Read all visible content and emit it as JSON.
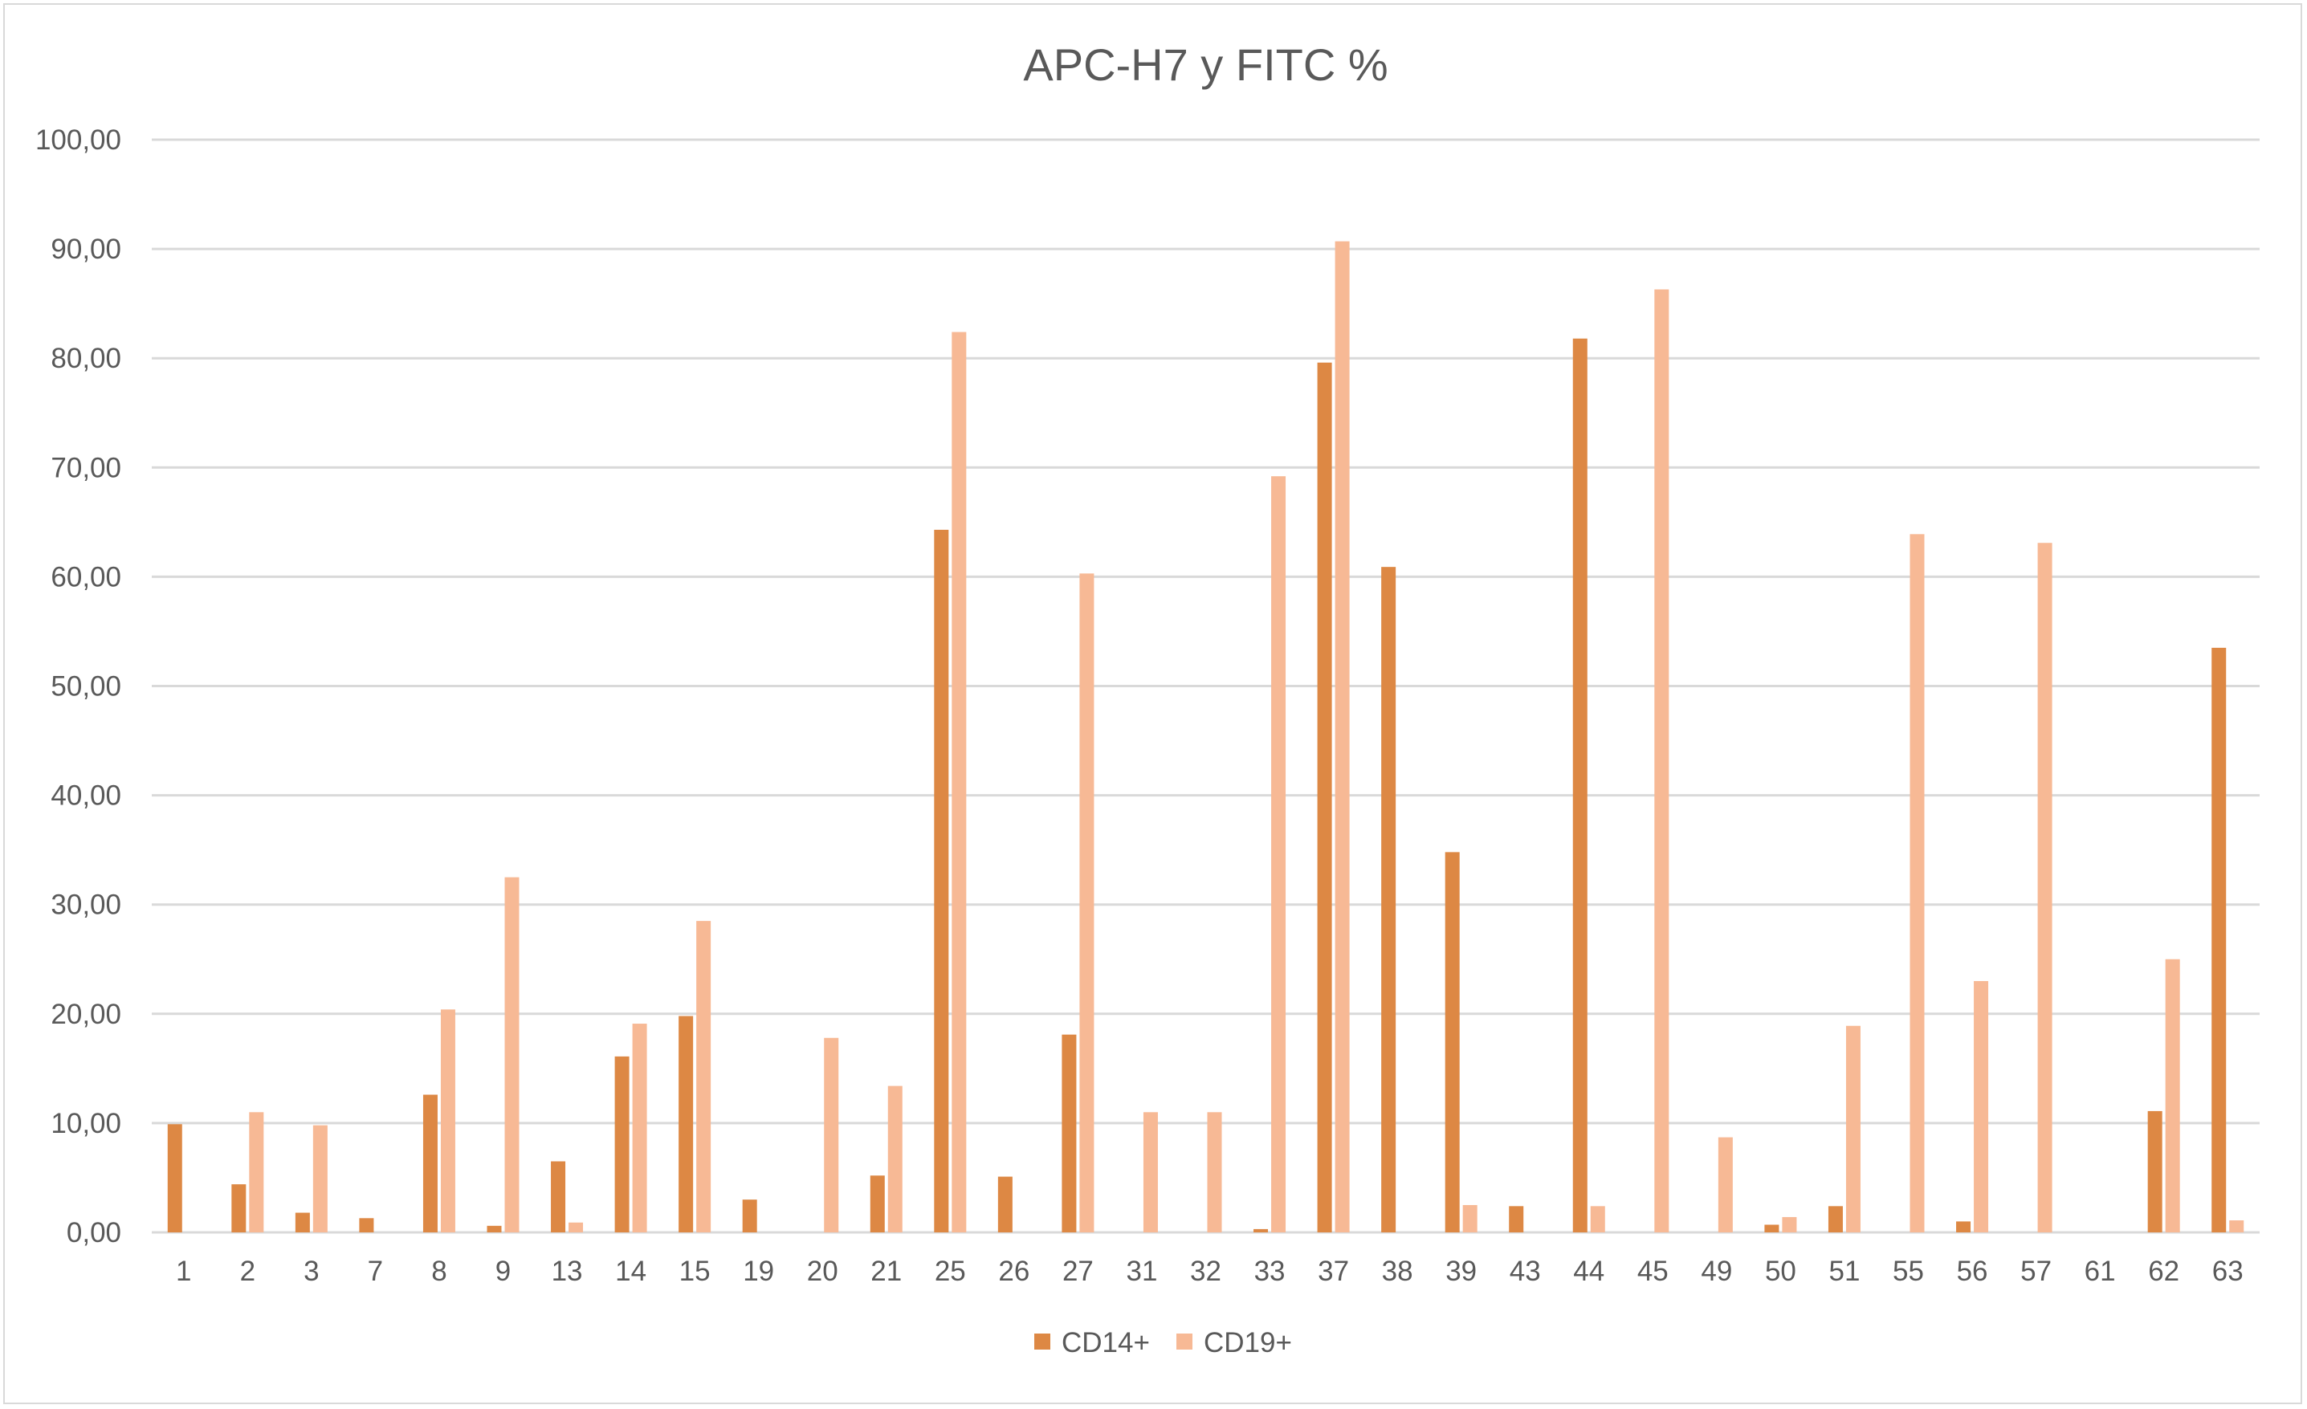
{
  "chart_data": {
    "type": "bar",
    "title": "APC-H7 y FITC %",
    "xlabel": "",
    "ylabel": "",
    "ylim": [
      0,
      100
    ],
    "y_ticks": [
      "0,00",
      "10,00",
      "20,00",
      "30,00",
      "40,00",
      "50,00",
      "60,00",
      "70,00",
      "80,00",
      "90,00",
      "100,00"
    ],
    "grid": true,
    "legend_position": "bottom",
    "categories": [
      "1",
      "2",
      "3",
      "7",
      "8",
      "9",
      "13",
      "14",
      "15",
      "19",
      "20",
      "21",
      "25",
      "26",
      "27",
      "31",
      "32",
      "33",
      "37",
      "38",
      "39",
      "43",
      "44",
      "45",
      "49",
      "50",
      "51",
      "55",
      "56",
      "57",
      "61",
      "62",
      "63"
    ],
    "series": [
      {
        "name": "CD14+",
        "color": "#dd8844",
        "values": [
          9.9,
          4.4,
          1.8,
          1.3,
          12.6,
          0.6,
          6.5,
          16.1,
          19.8,
          3.0,
          0.0,
          5.2,
          64.3,
          5.1,
          18.1,
          0.0,
          0.0,
          0.3,
          79.6,
          60.9,
          34.8,
          2.4,
          81.8,
          0.0,
          0.0,
          0.7,
          2.4,
          0.0,
          1.0,
          0.0,
          0.0,
          11.1,
          53.5
        ]
      },
      {
        "name": "CD19+",
        "color": "#f7b995",
        "values": [
          0.0,
          11.0,
          9.8,
          0.0,
          20.4,
          32.5,
          0.9,
          19.1,
          28.5,
          0.0,
          17.8,
          13.4,
          82.4,
          0.0,
          60.3,
          11.0,
          11.0,
          69.2,
          90.7,
          0.0,
          2.5,
          0.0,
          2.4,
          86.3,
          8.7,
          1.4,
          18.9,
          63.9,
          23.0,
          63.1,
          0.0,
          25.0,
          1.1
        ]
      }
    ]
  }
}
